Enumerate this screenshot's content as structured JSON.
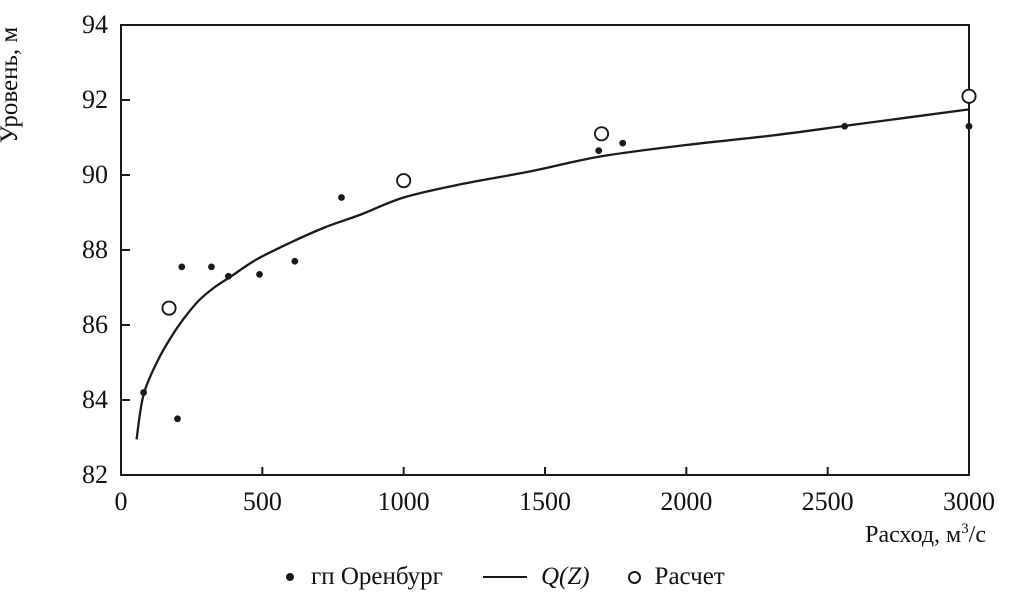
{
  "figure": {
    "background": "#ffffff",
    "line_color": "#1a1a1a",
    "text_color": "#111111"
  },
  "chart_data": {
    "type": "scatter",
    "title": "",
    "xlabel": "Расход, м³/с",
    "xlabel_parts": {
      "prefix": "Расход, м",
      "sup": "3",
      "suffix": "/с"
    },
    "ylabel": "Уровень, м",
    "xlim": [
      0,
      3000
    ],
    "ylim": [
      82,
      94
    ],
    "x_ticks": [
      0,
      500,
      1000,
      1500,
      2000,
      2500,
      3000
    ],
    "y_ticks": [
      82,
      84,
      86,
      88,
      90,
      92,
      94
    ],
    "grid": false,
    "legend_position": "bottom-center",
    "series": [
      {
        "name": "гп Оренбург",
        "type": "scatter",
        "marker": "filled-dot",
        "color": "#1a1a1a",
        "points": [
          [
            80,
            84.2
          ],
          [
            200,
            83.5
          ],
          [
            215,
            87.55
          ],
          [
            320,
            87.55
          ],
          [
            380,
            87.3
          ],
          [
            490,
            87.35
          ],
          [
            615,
            87.7
          ],
          [
            780,
            89.4
          ],
          [
            1690,
            90.65
          ],
          [
            1775,
            90.85
          ],
          [
            2560,
            91.3
          ],
          [
            3000,
            91.3
          ]
        ]
      },
      {
        "name": "Q(Z)",
        "type": "line",
        "marker": "line",
        "color": "#1a1a1a",
        "points": [
          [
            55,
            82.95
          ],
          [
            80,
            84.15
          ],
          [
            130,
            85.05
          ],
          [
            175,
            85.65
          ],
          [
            220,
            86.15
          ],
          [
            275,
            86.65
          ],
          [
            330,
            87.0
          ],
          [
            390,
            87.3
          ],
          [
            480,
            87.75
          ],
          [
            600,
            88.2
          ],
          [
            720,
            88.6
          ],
          [
            850,
            88.95
          ],
          [
            1000,
            89.4
          ],
          [
            1200,
            89.75
          ],
          [
            1450,
            90.1
          ],
          [
            1700,
            90.5
          ],
          [
            2000,
            90.8
          ],
          [
            2300,
            91.05
          ],
          [
            2600,
            91.35
          ],
          [
            3000,
            91.75
          ]
        ]
      },
      {
        "name": "Расчет",
        "type": "scatter",
        "marker": "open-circle",
        "color": "#1a1a1a",
        "points": [
          [
            170,
            86.45
          ],
          [
            1000,
            89.85
          ],
          [
            1700,
            91.1
          ],
          [
            3000,
            92.1
          ]
        ]
      }
    ]
  }
}
